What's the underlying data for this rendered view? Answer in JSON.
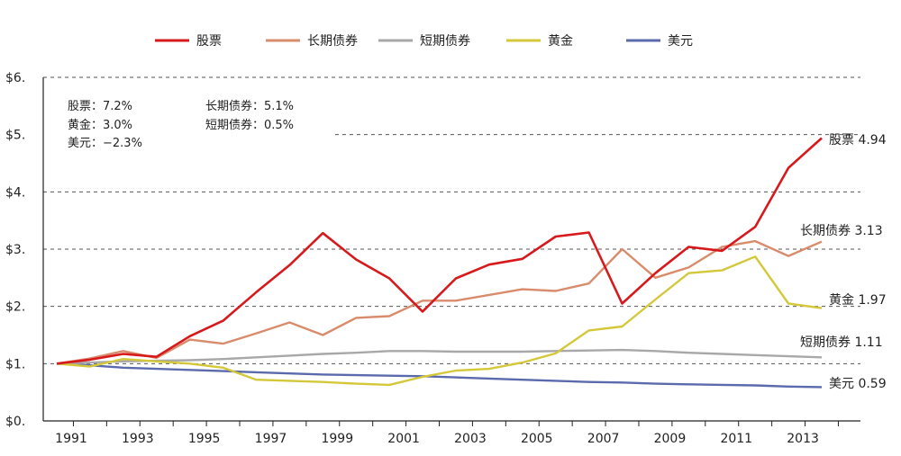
{
  "chart_data": {
    "type": "line",
    "title": "",
    "xlabel": "",
    "ylabel": "",
    "x": [
      1991,
      1992,
      1993,
      1994,
      1995,
      1996,
      1997,
      1998,
      1999,
      2000,
      2001,
      2002,
      2003,
      2004,
      2005,
      2006,
      2007,
      2008,
      2009,
      2010,
      2011,
      2012,
      2013,
      2014
    ],
    "x_ticks": [
      "1991",
      "1993",
      "1995",
      "1997",
      "1999",
      "2001",
      "2003",
      "2005",
      "2007",
      "2009",
      "2011",
      "2013"
    ],
    "ylim": [
      0,
      6
    ],
    "y_ticks": [
      "$0.",
      "$1.",
      "$2.",
      "$3.",
      "$4.",
      "$5.",
      "$6."
    ],
    "grid": "horizontal dashed",
    "legend_position": "top",
    "series": [
      {
        "name": "股票",
        "color": "#d7191c",
        "values": [
          1.0,
          1.07,
          1.17,
          1.12,
          1.48,
          1.75,
          2.25,
          2.72,
          3.28,
          2.82,
          2.49,
          1.91,
          2.49,
          2.73,
          2.83,
          3.22,
          3.29,
          2.05,
          2.58,
          3.04,
          2.97,
          3.39,
          4.42,
          4.94
        ],
        "end_label": "股票 4.94"
      },
      {
        "name": "长期债券",
        "color": "#d98c6c",
        "values": [
          1.0,
          1.09,
          1.22,
          1.1,
          1.42,
          1.35,
          1.53,
          1.72,
          1.5,
          1.8,
          1.83,
          2.1,
          2.1,
          2.2,
          2.3,
          2.27,
          2.4,
          3.0,
          2.5,
          2.68,
          3.04,
          3.14,
          2.88,
          3.13
        ],
        "end_label": "长期债券 3.13"
      },
      {
        "name": "短期债券",
        "color": "#a8a8a8",
        "values": [
          1.0,
          1.02,
          1.04,
          1.05,
          1.06,
          1.08,
          1.11,
          1.14,
          1.17,
          1.19,
          1.22,
          1.22,
          1.21,
          1.21,
          1.21,
          1.22,
          1.23,
          1.24,
          1.22,
          1.19,
          1.17,
          1.15,
          1.13,
          1.11
        ],
        "end_label": "短期债券 1.11"
      },
      {
        "name": "黄金",
        "color": "#d4c83a",
        "values": [
          1.0,
          0.95,
          1.08,
          1.04,
          1.0,
          0.93,
          0.72,
          0.7,
          0.68,
          0.65,
          0.63,
          0.77,
          0.88,
          0.91,
          1.02,
          1.18,
          1.58,
          1.65,
          2.12,
          2.58,
          2.63,
          2.87,
          2.05,
          1.97
        ],
        "end_label": "黄金 1.97"
      },
      {
        "name": "美元",
        "color": "#5b6aac",
        "values": [
          1.0,
          0.97,
          0.93,
          0.91,
          0.89,
          0.87,
          0.85,
          0.83,
          0.81,
          0.8,
          0.79,
          0.78,
          0.76,
          0.74,
          0.72,
          0.7,
          0.68,
          0.67,
          0.65,
          0.64,
          0.63,
          0.62,
          0.6,
          0.59
        ],
        "end_label": "美元 0.59"
      }
    ],
    "annotations": [
      {
        "text": "股票：7.2%"
      },
      {
        "text": "黄金：3.0%"
      },
      {
        "text": "美元：−2.3%"
      },
      {
        "text": "长期债券：5.1%"
      },
      {
        "text": "短期债券：0.5%"
      }
    ]
  }
}
